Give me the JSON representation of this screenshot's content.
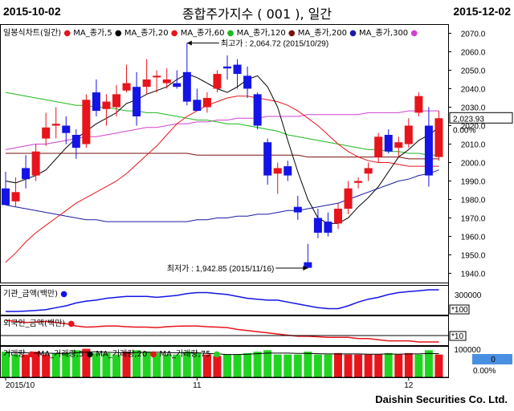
{
  "header": {
    "start_date": "2015-10-02",
    "title": "종합주가지수 ( 001 ), 일간",
    "end_date": "2015-12-02"
  },
  "footer": {
    "company": "Daishin Securities Co. Ltd."
  },
  "colors": {
    "up": "#e8141b",
    "down": "#1414e6",
    "ma5": "#000000",
    "ma20": "#e8141b",
    "ma60": "#1db81d",
    "ma120": "#7b0f0f",
    "ma200": "#1a1aa6",
    "ma300": "#d040d0",
    "volume_up": "#e8141b",
    "volume_down": "#22d422",
    "value_highlight": "#4a90e2"
  },
  "legends": {
    "price": [
      {
        "text": "일봉식차트(일간)",
        "color": "#e8141b"
      },
      {
        "text": "MA_종가,5",
        "color": "#000000"
      },
      {
        "text": "MA_종가,20",
        "color": "#e8141b"
      },
      {
        "text": "MA_종가,60",
        "color": "#1db81d"
      },
      {
        "text": "MA_종가,120",
        "color": "#7b0f0f"
      },
      {
        "text": "MA_종가,200",
        "color": "#1a1aa6"
      },
      {
        "text": "MA_종가,300",
        "color": "#d040d0"
      }
    ],
    "institution": [
      {
        "text": "기관_금액(백만)",
        "color": "#1414e6"
      }
    ],
    "foreign": [
      {
        "text": "외국인_금액(백만)",
        "color": "#e8141b"
      }
    ],
    "volume": [
      {
        "text": "거래량",
        "color": "#e8141b"
      },
      {
        "text": "MA_거래량,5",
        "color": "#000000"
      },
      {
        "text": "MA_거래량,20",
        "color": "#e8141b"
      },
      {
        "text": "MA_거래량,75",
        "color": "#22d422"
      }
    ]
  },
  "chart_data": [
    {
      "type": "candlestick",
      "title": "종합주가지수 ( 001 ), 일간",
      "ylim": [
        1935,
        2075
      ],
      "y_ticks": [
        1940,
        1950,
        1960,
        1970,
        1980,
        1990,
        2000,
        2010,
        2020,
        2030,
        2040,
        2050,
        2060,
        2070
      ],
      "x_tick_labels": [
        "2015/10",
        "11",
        "12"
      ],
      "x_tick_index": [
        0,
        19,
        40
      ],
      "last_price_label": "2,023.93",
      "change_label": "0.00%",
      "annotations": [
        {
          "text": "최고가 : 2,064.72 (2015/10/29)",
          "index": 18,
          "price": 2064.72
        },
        {
          "text": "최저가 : 1,942.85 (2015/11/16)",
          "index": 30,
          "price": 1942.85
        }
      ],
      "candles": [
        {
          "o": 1986,
          "h": 1995,
          "l": 1977,
          "c": 1977
        },
        {
          "o": 1979,
          "h": 1992,
          "l": 1976,
          "c": 1984
        },
        {
          "o": 1997,
          "h": 2004,
          "l": 1986,
          "c": 1991
        },
        {
          "o": 1993,
          "h": 2010,
          "l": 1990,
          "c": 2006
        },
        {
          "o": 2013,
          "h": 2027,
          "l": 2009,
          "c": 2019
        },
        {
          "o": 2020,
          "h": 2030,
          "l": 2013,
          "c": 2021
        },
        {
          "o": 2020,
          "h": 2025,
          "l": 2010,
          "c": 2016
        },
        {
          "o": 2015,
          "h": 2018,
          "l": 2002,
          "c": 2008
        },
        {
          "o": 2010,
          "h": 2037,
          "l": 2008,
          "c": 2034
        },
        {
          "o": 2038,
          "h": 2045,
          "l": 2025,
          "c": 2028
        },
        {
          "o": 2029,
          "h": 2037,
          "l": 2020,
          "c": 2033
        },
        {
          "o": 2030,
          "h": 2042,
          "l": 2025,
          "c": 2037
        },
        {
          "o": 2039,
          "h": 2053,
          "l": 2038,
          "c": 2043
        },
        {
          "o": 2041,
          "h": 2049,
          "l": 2020,
          "c": 2025
        },
        {
          "o": 2041,
          "h": 2056,
          "l": 2037,
          "c": 2045
        },
        {
          "o": 2047,
          "h": 2050,
          "l": 2038,
          "c": 2047
        },
        {
          "o": 2043,
          "h": 2051,
          "l": 2040,
          "c": 2045
        },
        {
          "o": 2043,
          "h": 2050,
          "l": 2040,
          "c": 2041
        },
        {
          "o": 2049,
          "h": 2064.72,
          "l": 2031,
          "c": 2033
        },
        {
          "o": 2034,
          "h": 2040,
          "l": 2028,
          "c": 2028
        },
        {
          "o": 2030,
          "h": 2038,
          "l": 2027,
          "c": 2035
        },
        {
          "o": 2040,
          "h": 2050,
          "l": 2038,
          "c": 2048
        },
        {
          "o": 2052,
          "h": 2058,
          "l": 2045,
          "c": 2051
        },
        {
          "o": 2053,
          "h": 2056,
          "l": 2040,
          "c": 2048
        },
        {
          "o": 2047,
          "h": 2052,
          "l": 2035,
          "c": 2040
        },
        {
          "o": 2037,
          "h": 2038,
          "l": 2018,
          "c": 2020
        },
        {
          "o": 2011,
          "h": 2013,
          "l": 1988,
          "c": 1993
        },
        {
          "o": 1994,
          "h": 2000,
          "l": 1983,
          "c": 1997
        },
        {
          "o": 1998,
          "h": 2001,
          "l": 1990,
          "c": 1993
        },
        {
          "o": 1976,
          "h": 1982,
          "l": 1969,
          "c": 1973
        },
        {
          "o": 1946,
          "h": 1956,
          "l": 1942.85,
          "c": 1943
        },
        {
          "o": 1970,
          "h": 1975,
          "l": 1959,
          "c": 1962
        },
        {
          "o": 1968,
          "h": 1973,
          "l": 1960,
          "c": 1962
        },
        {
          "o": 1967,
          "h": 1978,
          "l": 1964,
          "c": 1975
        },
        {
          "o": 1975,
          "h": 1990,
          "l": 1972,
          "c": 1986
        },
        {
          "o": 1989,
          "h": 1992,
          "l": 1986,
          "c": 1990
        },
        {
          "o": 1994,
          "h": 2000,
          "l": 1990,
          "c": 1997
        },
        {
          "o": 2003,
          "h": 2016,
          "l": 2000,
          "c": 2014
        },
        {
          "o": 2015,
          "h": 2018,
          "l": 2005,
          "c": 2006
        },
        {
          "o": 2008,
          "h": 2014,
          "l": 2003,
          "c": 2011
        },
        {
          "o": 2010,
          "h": 2024,
          "l": 2008,
          "c": 2020
        },
        {
          "o": 2027,
          "h": 2038,
          "l": 2025,
          "c": 2036
        },
        {
          "o": 2020,
          "h": 2030,
          "l": 1987,
          "c": 1993
        },
        {
          "o": 2003,
          "h": 2028,
          "l": 2001,
          "c": 2024
        }
      ],
      "ma5": [
        1990,
        1989,
        1991,
        1993,
        1996,
        2002,
        2008,
        2013,
        2017,
        2021,
        2024,
        2027,
        2032,
        2034,
        2037,
        2039,
        2041,
        2045,
        2048,
        2046,
        2043,
        2040,
        2038,
        2041,
        2045,
        2047,
        2041,
        2030,
        2012,
        1995,
        1980,
        1970,
        1967,
        1967,
        1970,
        1976,
        1981,
        1987,
        1995,
        2003,
        2007,
        2012,
        2015,
        2019
      ],
      "ma20": [
        1946,
        1951,
        1957,
        1962,
        1966,
        1970,
        1974,
        1978,
        1981,
        1984,
        1987,
        1990,
        1994,
        1999,
        2004,
        2009,
        2015,
        2021,
        2025,
        2028,
        2031,
        2033,
        2035,
        2036,
        2036,
        2035,
        2034,
        2033,
        2031,
        2028,
        2024,
        2020,
        2015,
        2010,
        2006,
        2003,
        2001,
        2000,
        2000,
        1999,
        1998,
        1998,
        1998,
        1998
      ],
      "ma60": [
        2038,
        2037,
        2036,
        2035,
        2034,
        2033,
        2032,
        2031,
        2031,
        2030,
        2030,
        2029,
        2028,
        2028,
        2027,
        2027,
        2026,
        2025,
        2024,
        2023,
        2023,
        2022,
        2021,
        2021,
        2020,
        2019,
        2018,
        2017,
        2015,
        2014,
        2013,
        2012,
        2011,
        2010,
        2009,
        2008,
        2007,
        2007,
        2006,
        2006,
        2005,
        2005,
        2004,
        2004
      ],
      "ma120": [
        2005,
        2005,
        2005,
        2005,
        2005,
        2005,
        2005,
        2005,
        2005,
        2005,
        2005,
        2005,
        2005,
        2005,
        2005,
        2005,
        2005,
        2005,
        2005,
        2004,
        2004,
        2004,
        2004,
        2004,
        2004,
        2004,
        2004,
        2004,
        2004,
        2004,
        2003,
        2003,
        2003,
        2003,
        2003,
        2003,
        2003,
        2003,
        2003,
        2003,
        2002,
        2002,
        2002,
        2002
      ],
      "ma200": [
        1977,
        1976,
        1975,
        1974,
        1973,
        1972,
        1971,
        1970,
        1969,
        1969,
        1968,
        1968,
        1968,
        1968,
        1968,
        1968,
        1968,
        1968,
        1968,
        1969,
        1969,
        1970,
        1970,
        1971,
        1971,
        1972,
        1972,
        1973,
        1974,
        1974,
        1975,
        1976,
        1977,
        1978,
        1980,
        1982,
        1984,
        1986,
        1988,
        1990,
        1991,
        1993,
        1994,
        1996
      ],
      "ma300": [
        2007,
        2008,
        2009,
        2010,
        2010,
        2011,
        2012,
        2013,
        2014,
        2014,
        2015,
        2016,
        2017,
        2018,
        2019,
        2019,
        2020,
        2021,
        2021,
        2022,
        2022,
        2023,
        2023,
        2024,
        2024,
        2024,
        2025,
        2025,
        2025,
        2025,
        2026,
        2026,
        2026,
        2026,
        2026,
        2026,
        2027,
        2027,
        2027,
        2027,
        2028,
        2028,
        2028,
        2028
      ]
    },
    {
      "type": "line",
      "name": "기관_금액(백만)",
      "y_tick_labels": [
        "300000",
        "*100"
      ],
      "values": [
        -60,
        -60,
        -58,
        -55,
        -50,
        -40,
        -30,
        -15,
        -5,
        0,
        10,
        15,
        20,
        20,
        20,
        15,
        20,
        25,
        35,
        40,
        40,
        35,
        30,
        20,
        10,
        5,
        0,
        0,
        -10,
        -20,
        -30,
        -40,
        -45,
        -45,
        -30,
        -10,
        5,
        15,
        30,
        40,
        45,
        50,
        55,
        55
      ]
    },
    {
      "type": "line",
      "name": "외국인_금액(백만)",
      "y_tick_labels": [
        "*10"
      ],
      "values": [
        50,
        45,
        40,
        42,
        45,
        40,
        35,
        25,
        20,
        22,
        25,
        25,
        22,
        20,
        20,
        18,
        22,
        24,
        25,
        25,
        22,
        20,
        18,
        10,
        5,
        0,
        -5,
        -10,
        -15,
        -20,
        -20,
        -22,
        -25,
        -25,
        -25,
        -30,
        -30,
        -35,
        -40,
        -40,
        -40,
        -45,
        -45,
        -45
      ]
    },
    {
      "type": "bar",
      "name": "거래량",
      "y_tick_labels": [
        "100000",
        "0"
      ],
      "highlight_value_label": "0",
      "change_label": "0.00%",
      "values": [
        90,
        80,
        80,
        90,
        80,
        85,
        85,
        95,
        100,
        85,
        85,
        80,
        90,
        95,
        90,
        85,
        80,
        80,
        90,
        85,
        80,
        75,
        80,
        80,
        85,
        90,
        95,
        80,
        80,
        80,
        90,
        80,
        80,
        85,
        80,
        80,
        80,
        80,
        85,
        80,
        85,
        80,
        95,
        80
      ],
      "direction": [
        "d",
        "d",
        "u",
        "u",
        "u",
        "d",
        "d",
        "d",
        "u",
        "d",
        "d",
        "d",
        "u",
        "d",
        "d",
        "d",
        "d",
        "d",
        "d",
        "d",
        "u",
        "u",
        "d",
        "d",
        "d",
        "d",
        "d",
        "d",
        "d",
        "d",
        "d",
        "d",
        "d",
        "u",
        "u",
        "u",
        "u",
        "u",
        "d",
        "u",
        "u",
        "d",
        "d",
        "u"
      ],
      "ma5": [
        88,
        87,
        86,
        85,
        85,
        84,
        84,
        86,
        88,
        90,
        88,
        87,
        86,
        87,
        88,
        88,
        87,
        86,
        86,
        86,
        84,
        82,
        80,
        80,
        81,
        83,
        85,
        85,
        85,
        84,
        84,
        83,
        82,
        82,
        82,
        82,
        81,
        81,
        82,
        81,
        82,
        82,
        84,
        83
      ]
    }
  ]
}
